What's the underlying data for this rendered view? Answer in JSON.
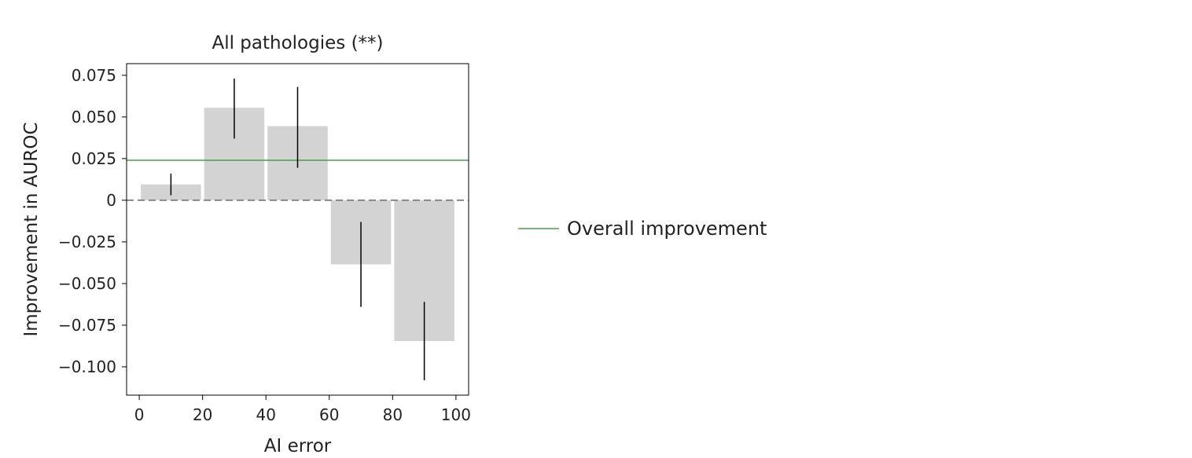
{
  "chart_data": {
    "type": "bar",
    "title": "All pathologies (**)",
    "xlabel": "AI error",
    "ylabel": "Improvement in AUROC",
    "xlim": [
      -4,
      104
    ],
    "ylim": [
      -0.117,
      0.082
    ],
    "x_ticks": [
      0,
      20,
      40,
      60,
      80,
      100
    ],
    "y_ticks": [
      0.075,
      0.05,
      0.025,
      0,
      -0.025,
      -0.05,
      -0.075,
      -0.1
    ],
    "y_tick_labels": [
      "0.075",
      "0.050",
      "0.025",
      "0",
      "−0.025",
      "−0.050",
      "−0.075",
      "−0.100"
    ],
    "bars": [
      {
        "x_start": 0,
        "x_end": 20,
        "center": 10,
        "value": 0.0095,
        "err_low": 0.003,
        "err_high": 0.016
      },
      {
        "x_start": 20,
        "x_end": 40,
        "center": 30,
        "value": 0.0555,
        "err_low": 0.037,
        "err_high": 0.073
      },
      {
        "x_start": 40,
        "x_end": 60,
        "center": 50,
        "value": 0.0445,
        "err_low": 0.0195,
        "err_high": 0.068
      },
      {
        "x_start": 60,
        "x_end": 80,
        "center": 70,
        "value": -0.0385,
        "err_low": -0.064,
        "err_high": -0.013
      },
      {
        "x_start": 80,
        "x_end": 100,
        "center": 90,
        "value": -0.0845,
        "err_low": -0.108,
        "err_high": -0.061
      }
    ],
    "overall_improvement": 0.024,
    "zero_line": 0,
    "legend": {
      "label": "Overall improvement",
      "position": "right"
    },
    "colors": {
      "bar": "#d3d3d3",
      "errorbar": "#000000",
      "overall_line": "#4a9e4a",
      "zero_line": "#888888",
      "axis": "#000000"
    }
  }
}
